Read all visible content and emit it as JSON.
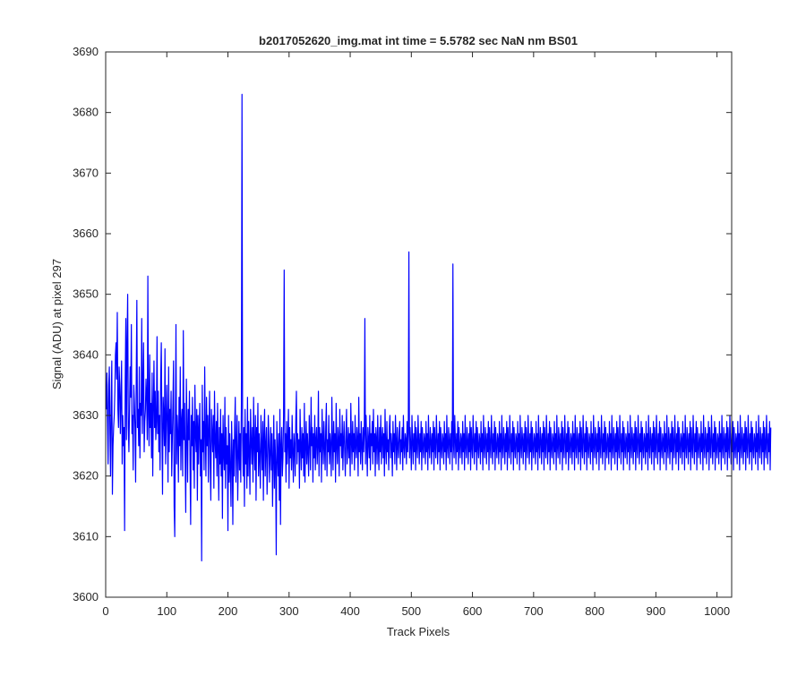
{
  "chart_data": {
    "type": "line",
    "title": "b2017052620_img.mat int time = 5.5782 sec  NaN nm BS01",
    "xlabel": "Track Pixels",
    "ylabel": "Signal (ADU) at pixel 297",
    "xlim": [
      0,
      1024
    ],
    "ylim": [
      3600,
      3690
    ],
    "xticks": [
      0,
      100,
      200,
      300,
      400,
      500,
      600,
      700,
      800,
      900,
      1000
    ],
    "yticks": [
      3600,
      3610,
      3620,
      3630,
      3640,
      3650,
      3660,
      3670,
      3680,
      3690
    ],
    "grid": false,
    "legend": "none",
    "line_color": "#0000ff",
    "series": [
      {
        "x_start": 1,
        "x_step": 1,
        "values": [
          3631,
          3637,
          3629,
          3622,
          3635,
          3638,
          3627,
          3620,
          3632,
          3639,
          3617,
          3625,
          3628,
          3630,
          3634,
          3640,
          3642,
          3636,
          3647,
          3631,
          3628,
          3638,
          3635,
          3627,
          3633,
          3639,
          3622,
          3630,
          3625,
          3628,
          3611,
          3636,
          3646,
          3626,
          3642,
          3650,
          3628,
          3624,
          3631,
          3638,
          3633,
          3645,
          3627,
          3630,
          3621,
          3635,
          3632,
          3628,
          3619,
          3636,
          3649,
          3628,
          3631,
          3625,
          3638,
          3623,
          3632,
          3630,
          3646,
          3627,
          3635,
          3642,
          3624,
          3629,
          3631,
          3636,
          3633,
          3626,
          3653,
          3630,
          3625,
          3640,
          3628,
          3632,
          3623,
          3637,
          3620,
          3631,
          3639,
          3628,
          3634,
          3626,
          3629,
          3643,
          3627,
          3634,
          3624,
          3630,
          3621,
          3636,
          3642,
          3628,
          3617,
          3633,
          3630,
          3625,
          3641,
          3622,
          3628,
          3635,
          3629,
          3619,
          3638,
          3624,
          3631,
          3627,
          3634,
          3620,
          3626,
          3632,
          3639,
          3615,
          3610,
          3628,
          3645,
          3622,
          3630,
          3627,
          3619,
          3633,
          3625,
          3638,
          3621,
          3629,
          3631,
          3620,
          3644,
          3626,
          3632,
          3623,
          3614,
          3636,
          3628,
          3619,
          3631,
          3626,
          3634,
          3622,
          3612,
          3630,
          3625,
          3633,
          3621,
          3629,
          3618,
          3635,
          3627,
          3624,
          3631,
          3616,
          3630,
          3622,
          3628,
          3632,
          3620,
          3626,
          3606,
          3635,
          3624,
          3629,
          3621,
          3638,
          3627,
          3620,
          3633,
          3625,
          3630,
          3619,
          3628,
          3634,
          3622,
          3616,
          3631,
          3627,
          3624,
          3630,
          3618,
          3634,
          3626,
          3623,
          3629,
          3620,
          3632,
          3625,
          3616,
          3628,
          3622,
          3631,
          3620,
          3627,
          3613,
          3630,
          3624,
          3621,
          3633,
          3618,
          3628,
          3622,
          3625,
          3611,
          3630,
          3619,
          3627,
          3621,
          3615,
          3629,
          3624,
          3612,
          3626,
          3620,
          3628,
          3633,
          3619,
          3625,
          3630,
          3616,
          3623,
          3629,
          3621,
          3627,
          3619,
          3632,
          3683,
          3626,
          3620,
          3628,
          3615,
          3631,
          3622,
          3627,
          3618,
          3633,
          3620,
          3629,
          3624,
          3617,
          3631,
          3626,
          3622,
          3628,
          3619,
          3633,
          3625,
          3621,
          3630,
          3616,
          3628,
          3624,
          3632,
          3620,
          3627,
          3623,
          3618,
          3630,
          3625,
          3621,
          3629,
          3616,
          3627,
          3631,
          3620,
          3625,
          3628,
          3617,
          3622,
          3630,
          3626,
          3619,
          3624,
          3628,
          3621,
          3627,
          3615,
          3623,
          3630,
          3618,
          3626,
          3622,
          3607,
          3629,
          3624,
          3620,
          3627,
          3616,
          3631,
          3612,
          3625,
          3628,
          3620,
          3623,
          3630,
          3654,
          3624,
          3627,
          3619,
          3629,
          3622,
          3626,
          3631,
          3618,
          3628,
          3623,
          3626,
          3621,
          3630,
          3624,
          3619,
          3627,
          3625,
          3620,
          3629,
          3634,
          3622,
          3627,
          3624,
          3626,
          3618,
          3631,
          3625,
          3621,
          3628,
          3623,
          3627,
          3620,
          3632,
          3619,
          3625,
          3629,
          3622,
          3627,
          3624,
          3620,
          3630,
          3626,
          3621,
          3633,
          3625,
          3628,
          3619,
          3627,
          3623,
          3630,
          3621,
          3626,
          3628,
          3622,
          3625,
          3634,
          3620,
          3628,
          3624,
          3627,
          3619,
          3631,
          3626,
          3622,
          3629,
          3625,
          3621,
          3628,
          3632,
          3620,
          3626,
          3624,
          3630,
          3622,
          3627,
          3625,
          3620,
          3633,
          3626,
          3621,
          3629,
          3624,
          3627,
          3619,
          3632,
          3625,
          3622,
          3628,
          3626,
          3620,
          3631,
          3625,
          3627,
          3623,
          3630,
          3621,
          3626,
          3629,
          3624,
          3620,
          3627,
          3631,
          3622,
          3625,
          3628,
          3623,
          3627,
          3620,
          3632,
          3626,
          3622,
          3629,
          3624,
          3627,
          3621,
          3630,
          3625,
          3623,
          3628,
          3626,
          3620,
          3633,
          3624,
          3627,
          3622,
          3629,
          3625,
          3621,
          3628,
          3624,
          3627,
          3646,
          3622,
          3630,
          3625,
          3620,
          3628,
          3626,
          3623,
          3630,
          3621,
          3627,
          3625,
          3629,
          3622,
          3631,
          3624,
          3627,
          3620,
          3628,
          3626,
          3622,
          3630,
          3625,
          3621,
          3628,
          3624,
          3630,
          3622,
          3626,
          3628,
          3623,
          3627,
          3620,
          3631,
          3625,
          3622,
          3629,
          3624,
          3626,
          3621,
          3628,
          3630,
          3623,
          3627,
          3625,
          3620,
          3629,
          3624,
          3627,
          3622,
          3630,
          3626,
          3621,
          3628,
          3625,
          3623,
          3627,
          3629,
          3622,
          3626,
          3624,
          3628,
          3621,
          3630,
          3625,
          3623,
          3627,
          3626,
          3622,
          3629,
          3624,
          3627,
          3657,
          3623,
          3628,
          3625,
          3621,
          3630,
          3626,
          3622,
          3627,
          3624,
          3629,
          3621,
          3628,
          3625,
          3623,
          3630,
          3626,
          3622,
          3627,
          3624,
          3629,
          3621,
          3628,
          3625,
          3623,
          3627,
          3626,
          3622,
          3629,
          3624,
          3627,
          3621,
          3630,
          3625,
          3623,
          3628,
          3626,
          3622,
          3627,
          3624,
          3629,
          3621,
          3628,
          3625,
          3623,
          3630,
          3626,
          3622,
          3627,
          3624,
          3629,
          3621,
          3628,
          3625,
          3623,
          3627,
          3626,
          3622,
          3629,
          3624,
          3627,
          3621,
          3630,
          3625,
          3623,
          3628,
          3626,
          3622,
          3627,
          3624,
          3629,
          3621,
          3655,
          3625,
          3623,
          3630,
          3626,
          3622,
          3627,
          3624,
          3629,
          3621,
          3628,
          3625,
          3623,
          3627,
          3626,
          3622,
          3629,
          3624,
          3627,
          3621,
          3630,
          3625,
          3623,
          3628,
          3626,
          3622,
          3627,
          3624,
          3629,
          3621,
          3628,
          3625,
          3623,
          3630,
          3626,
          3622,
          3627,
          3624,
          3629,
          3621,
          3628,
          3625,
          3623,
          3627,
          3626,
          3622,
          3629,
          3624,
          3627,
          3621,
          3630,
          3625,
          3623,
          3628,
          3626,
          3622,
          3627,
          3624,
          3629,
          3621,
          3628,
          3625,
          3623,
          3630,
          3626,
          3622,
          3627,
          3624,
          3629,
          3621,
          3628,
          3625,
          3623,
          3627,
          3626,
          3622,
          3629,
          3624,
          3627,
          3621,
          3630,
          3625,
          3623,
          3628,
          3626,
          3622,
          3627,
          3624,
          3629,
          3621,
          3628,
          3625,
          3623,
          3630,
          3626,
          3622,
          3627,
          3624,
          3629,
          3621,
          3628,
          3625,
          3623,
          3627,
          3626,
          3622,
          3629,
          3624,
          3627,
          3621,
          3630,
          3625,
          3623,
          3628,
          3626,
          3622,
          3627,
          3624,
          3629,
          3621,
          3628,
          3625,
          3623,
          3630,
          3626,
          3622,
          3627,
          3624,
          3629,
          3621,
          3628,
          3625,
          3623,
          3627,
          3626,
          3622,
          3629,
          3624,
          3627,
          3621,
          3630,
          3625,
          3623,
          3628,
          3626,
          3622,
          3627,
          3624,
          3629,
          3621,
          3628,
          3625,
          3623,
          3630,
          3626,
          3622,
          3627,
          3624,
          3629,
          3621,
          3628,
          3625,
          3623,
          3627,
          3626,
          3622,
          3629,
          3624,
          3627,
          3621,
          3630,
          3625,
          3623,
          3628,
          3626,
          3622,
          3627,
          3624,
          3629,
          3621,
          3628,
          3625,
          3623,
          3630,
          3626,
          3622,
          3627,
          3624,
          3629,
          3621,
          3628,
          3625,
          3623,
          3627,
          3626,
          3622,
          3629,
          3624,
          3627,
          3621,
          3630,
          3625,
          3623,
          3628,
          3626,
          3622,
          3627,
          3624,
          3629,
          3621,
          3628,
          3625,
          3623,
          3630,
          3626,
          3622,
          3627,
          3624,
          3629,
          3621,
          3628,
          3625,
          3623,
          3627,
          3626,
          3622,
          3629,
          3624,
          3627,
          3621,
          3630,
          3625,
          3623,
          3628,
          3626,
          3622,
          3627,
          3624,
          3629,
          3621,
          3628,
          3625,
          3623,
          3630,
          3626,
          3622,
          3627,
          3624,
          3629,
          3621,
          3628,
          3625,
          3623,
          3627,
          3626,
          3622,
          3629,
          3624,
          3627,
          3621,
          3630,
          3625,
          3623,
          3628,
          3626,
          3622,
          3627,
          3624,
          3629,
          3621,
          3628,
          3625,
          3623,
          3630,
          3626,
          3622,
          3627,
          3624,
          3629,
          3621,
          3628,
          3625,
          3623,
          3627,
          3626,
          3622,
          3629,
          3624,
          3627,
          3621,
          3630,
          3625,
          3623,
          3628,
          3626,
          3622,
          3627,
          3624,
          3629,
          3621,
          3628,
          3625,
          3623,
          3630,
          3626,
          3622,
          3627,
          3624,
          3629,
          3621,
          3628,
          3625,
          3623,
          3627,
          3626,
          3622,
          3629,
          3624,
          3627,
          3621,
          3630,
          3625,
          3623,
          3628,
          3626,
          3622,
          3627,
          3624,
          3629,
          3621,
          3628,
          3625,
          3623,
          3630,
          3626,
          3622,
          3627,
          3624,
          3629,
          3621,
          3628,
          3625,
          3623,
          3627,
          3626,
          3622,
          3629,
          3624,
          3627,
          3621,
          3630,
          3625,
          3623,
          3628,
          3626,
          3622,
          3627,
          3624,
          3629,
          3621,
          3628,
          3625,
          3623,
          3630,
          3626,
          3622,
          3627,
          3624,
          3629,
          3621,
          3628,
          3625,
          3623,
          3627,
          3626,
          3622,
          3629,
          3624,
          3627,
          3621,
          3630,
          3625,
          3623,
          3628,
          3626,
          3622,
          3627,
          3624,
          3629,
          3621,
          3628,
          3625,
          3623,
          3630,
          3626,
          3622,
          3627,
          3624,
          3629,
          3621,
          3628,
          3625,
          3623,
          3627,
          3626,
          3622,
          3629,
          3624,
          3627,
          3621,
          3630,
          3625,
          3623,
          3628,
          3626,
          3622,
          3627,
          3624,
          3629,
          3621,
          3628,
          3625,
          3623,
          3630,
          3626,
          3622,
          3627,
          3624,
          3629,
          3621,
          3628,
          3625,
          3623,
          3627,
          3626,
          3622,
          3629,
          3624,
          3627,
          3621,
          3630,
          3625,
          3623,
          3628,
          3626,
          3622,
          3627,
          3624,
          3629,
          3621,
          3628,
          3625,
          3623,
          3630,
          3626,
          3622,
          3627,
          3624,
          3629,
          3621,
          3628,
          3625,
          3623,
          3627,
          3626,
          3622,
          3629,
          3624,
          3627,
          3621,
          3630,
          3625,
          3623,
          3628,
          3626,
          3622,
          3627,
          3624,
          3629,
          3621,
          3628,
          3625,
          3623,
          3630,
          3626,
          3622,
          3627,
          3624,
          3629,
          3621,
          3628,
          3625,
          3623,
          3627,
          3626,
          3622,
          3629,
          3624,
          3627,
          3621,
          3630,
          3625,
          3623,
          3628,
          3626,
          3622,
          3627,
          3624,
          3629,
          3621,
          3628,
          3625,
          3623,
          3630,
          3626,
          3622,
          3627,
          3624,
          3629,
          3621,
          3628
        ]
      }
    ]
  }
}
